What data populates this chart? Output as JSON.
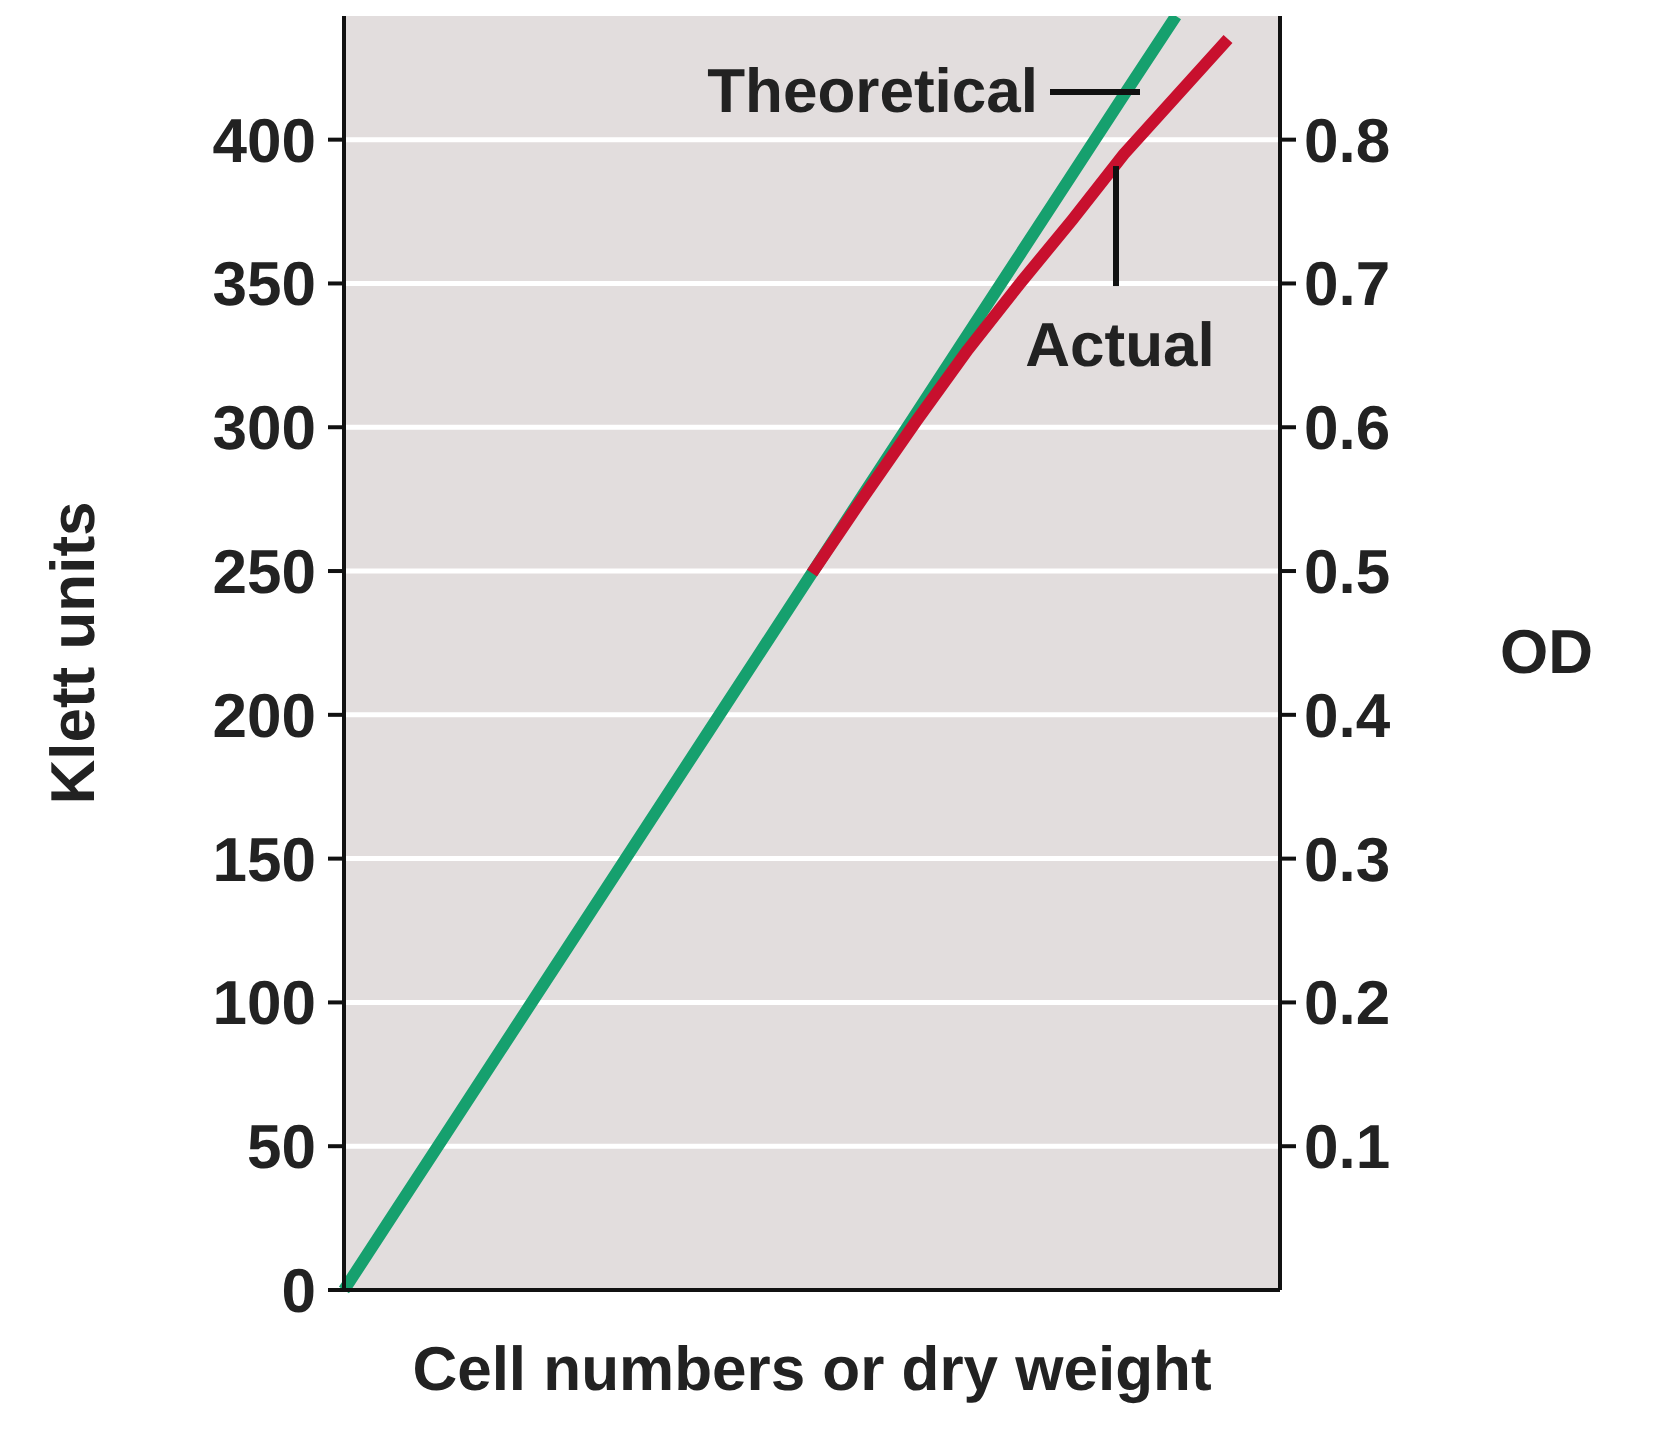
{
  "chart_data": {
    "type": "line",
    "xlabel": "Cell numbers or dry weight",
    "ylabel": "Klett units",
    "y2label": "OD",
    "categories": [
      null,
      null,
      null,
      null,
      null,
      null,
      null,
      null,
      null,
      null,
      null,
      null,
      null,
      null,
      null,
      null,
      null,
      null,
      null
    ],
    "series": [
      {
        "name": "Theoretical",
        "color": "#16a06e",
        "values": [
          0,
          27.7,
          55.4,
          83.1,
          110.8,
          138.5,
          166.2,
          193.9,
          221.6,
          249.3,
          277,
          304.7,
          332.4,
          360.1,
          387.8,
          415.5,
          443,
          null,
          null
        ]
      },
      {
        "name": "Actual",
        "color": "#c8102e",
        "values": [
          null,
          null,
          null,
          null,
          null,
          null,
          null,
          null,
          null,
          249.3,
          276,
          302,
          327,
          350,
          372,
          395,
          415,
          435,
          null
        ]
      }
    ],
    "ylim": [
      0,
      443
    ],
    "yticks": [
      0,
      50,
      100,
      150,
      200,
      250,
      300,
      350,
      400
    ],
    "y2lim": [
      0,
      0.886
    ],
    "y2ticks": [
      0.1,
      0.2,
      0.3,
      0.4,
      0.5,
      0.6,
      0.7,
      0.8
    ],
    "grid": "y",
    "line_style": "solid"
  }
}
